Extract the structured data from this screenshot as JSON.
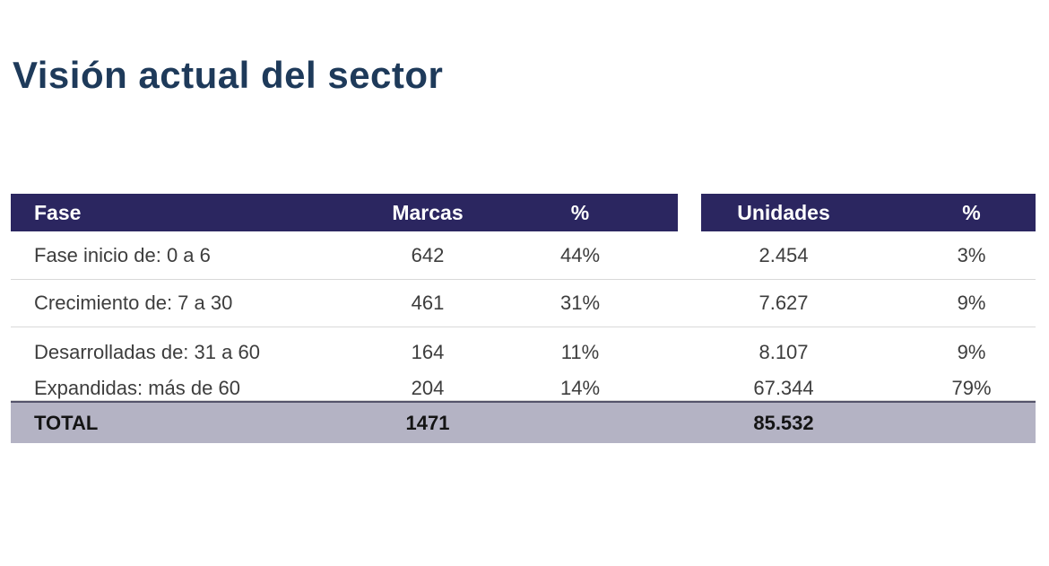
{
  "title": "Visión actual del sector",
  "colors": {
    "title_text": "#1e3a5a",
    "header_bg": "#2b2660",
    "header_text": "#ffffff",
    "row_text": "#3d3d3d",
    "row_divider": "#d9d9d9",
    "total_bg": "#b4b3c4",
    "total_border": "#54536a",
    "total_text": "#141414"
  },
  "table": {
    "headers": {
      "fase": "Fase",
      "marcas": "Marcas",
      "pct_marcas": "%",
      "unidades": "Unidades",
      "pct_unidades": "%"
    },
    "rows": [
      {
        "fase": "Fase inicio de: 0 a 6",
        "marcas": "642",
        "pct_marcas": "44%",
        "unidades": "2.454",
        "pct_unidades": "3%"
      },
      {
        "fase": "Crecimiento de: 7 a 30",
        "marcas": "461",
        "pct_marcas": "31%",
        "unidades": "7.627",
        "pct_unidades": "9%"
      },
      {
        "fase": "Desarrolladas de: 31 a 60",
        "marcas": "164",
        "pct_marcas": "11%",
        "unidades": "8.107",
        "pct_unidades": "9%"
      },
      {
        "fase": "Expandidas: más de 60",
        "marcas": "204",
        "pct_marcas": "14%",
        "unidades": "67.344",
        "pct_unidades": "79%"
      }
    ],
    "total": {
      "label": "TOTAL",
      "marcas": "1471",
      "unidades": "85.532"
    }
  },
  "chart_data": {
    "type": "table",
    "title": "Visión actual del sector",
    "columns": [
      "Fase",
      "Marcas",
      "%",
      "Unidades",
      "%"
    ],
    "rows": [
      [
        "Fase inicio de: 0 a 6",
        642,
        "44%",
        2454,
        "3%"
      ],
      [
        "Crecimiento de: 7 a 30",
        461,
        "31%",
        7627,
        "9%"
      ],
      [
        "Desarrolladas de: 31 a 60",
        164,
        "11%",
        8107,
        "9%"
      ],
      [
        "Expandidas: más de 60",
        204,
        "14%",
        67344,
        "79%"
      ]
    ],
    "total_row": [
      "TOTAL",
      1471,
      "",
      85532,
      ""
    ]
  }
}
